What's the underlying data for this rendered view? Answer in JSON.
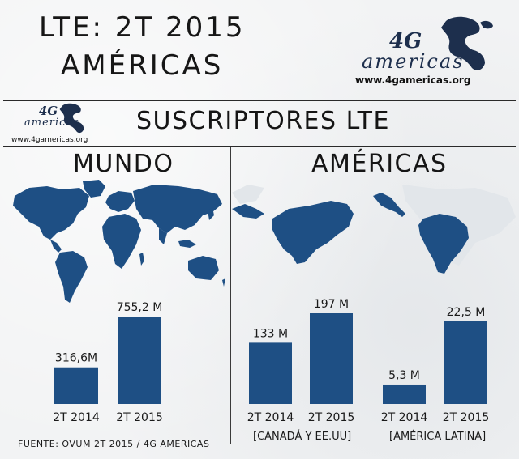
{
  "header": {
    "title_line1": "LTE: 2T 2015",
    "title_line2": "AMÉRICAS"
  },
  "logo": {
    "mark": "4G",
    "word": "americas",
    "url": "www.4gamericas.org"
  },
  "section": {
    "title": "SUSCRIPTORES LTE"
  },
  "panels": {
    "world": {
      "title": "MUNDO"
    },
    "americas": {
      "title": "AMÉRICAS"
    }
  },
  "icons": {
    "world_map": "world-map-icon",
    "americas_map": "americas-map-icon",
    "logo_globe": "americas-globe-icon"
  },
  "colors": {
    "bar": "#1e4f84",
    "map": "#1e4f84",
    "logo": "#1d2f4d"
  },
  "chart_data": [
    {
      "type": "bar",
      "panel": "MUNDO",
      "categories": [
        "2T 2014",
        "2T 2015"
      ],
      "values": [
        316.6,
        755.2
      ],
      "data_labels": [
        "316,6M",
        "755,2 M"
      ],
      "group_label": ""
    },
    {
      "type": "bar",
      "panel": "AMÉRICAS",
      "categories": [
        "2T 2014",
        "2T 2015"
      ],
      "values": [
        133,
        197
      ],
      "data_labels": [
        "133 M",
        "197 M"
      ],
      "group_label": "[CANADÁ Y EE.UU]"
    },
    {
      "type": "bar",
      "panel": "AMÉRICAS",
      "categories": [
        "2T 2014",
        "2T 2015"
      ],
      "values": [
        5.3,
        22.5
      ],
      "data_labels": [
        "5,3 M",
        "22,5 M"
      ],
      "group_label": "[AMÉRICA LATINA]"
    }
  ],
  "footer": {
    "source": "FUENTE: OVUM 2T 2015 / 4G AMERICAS"
  }
}
